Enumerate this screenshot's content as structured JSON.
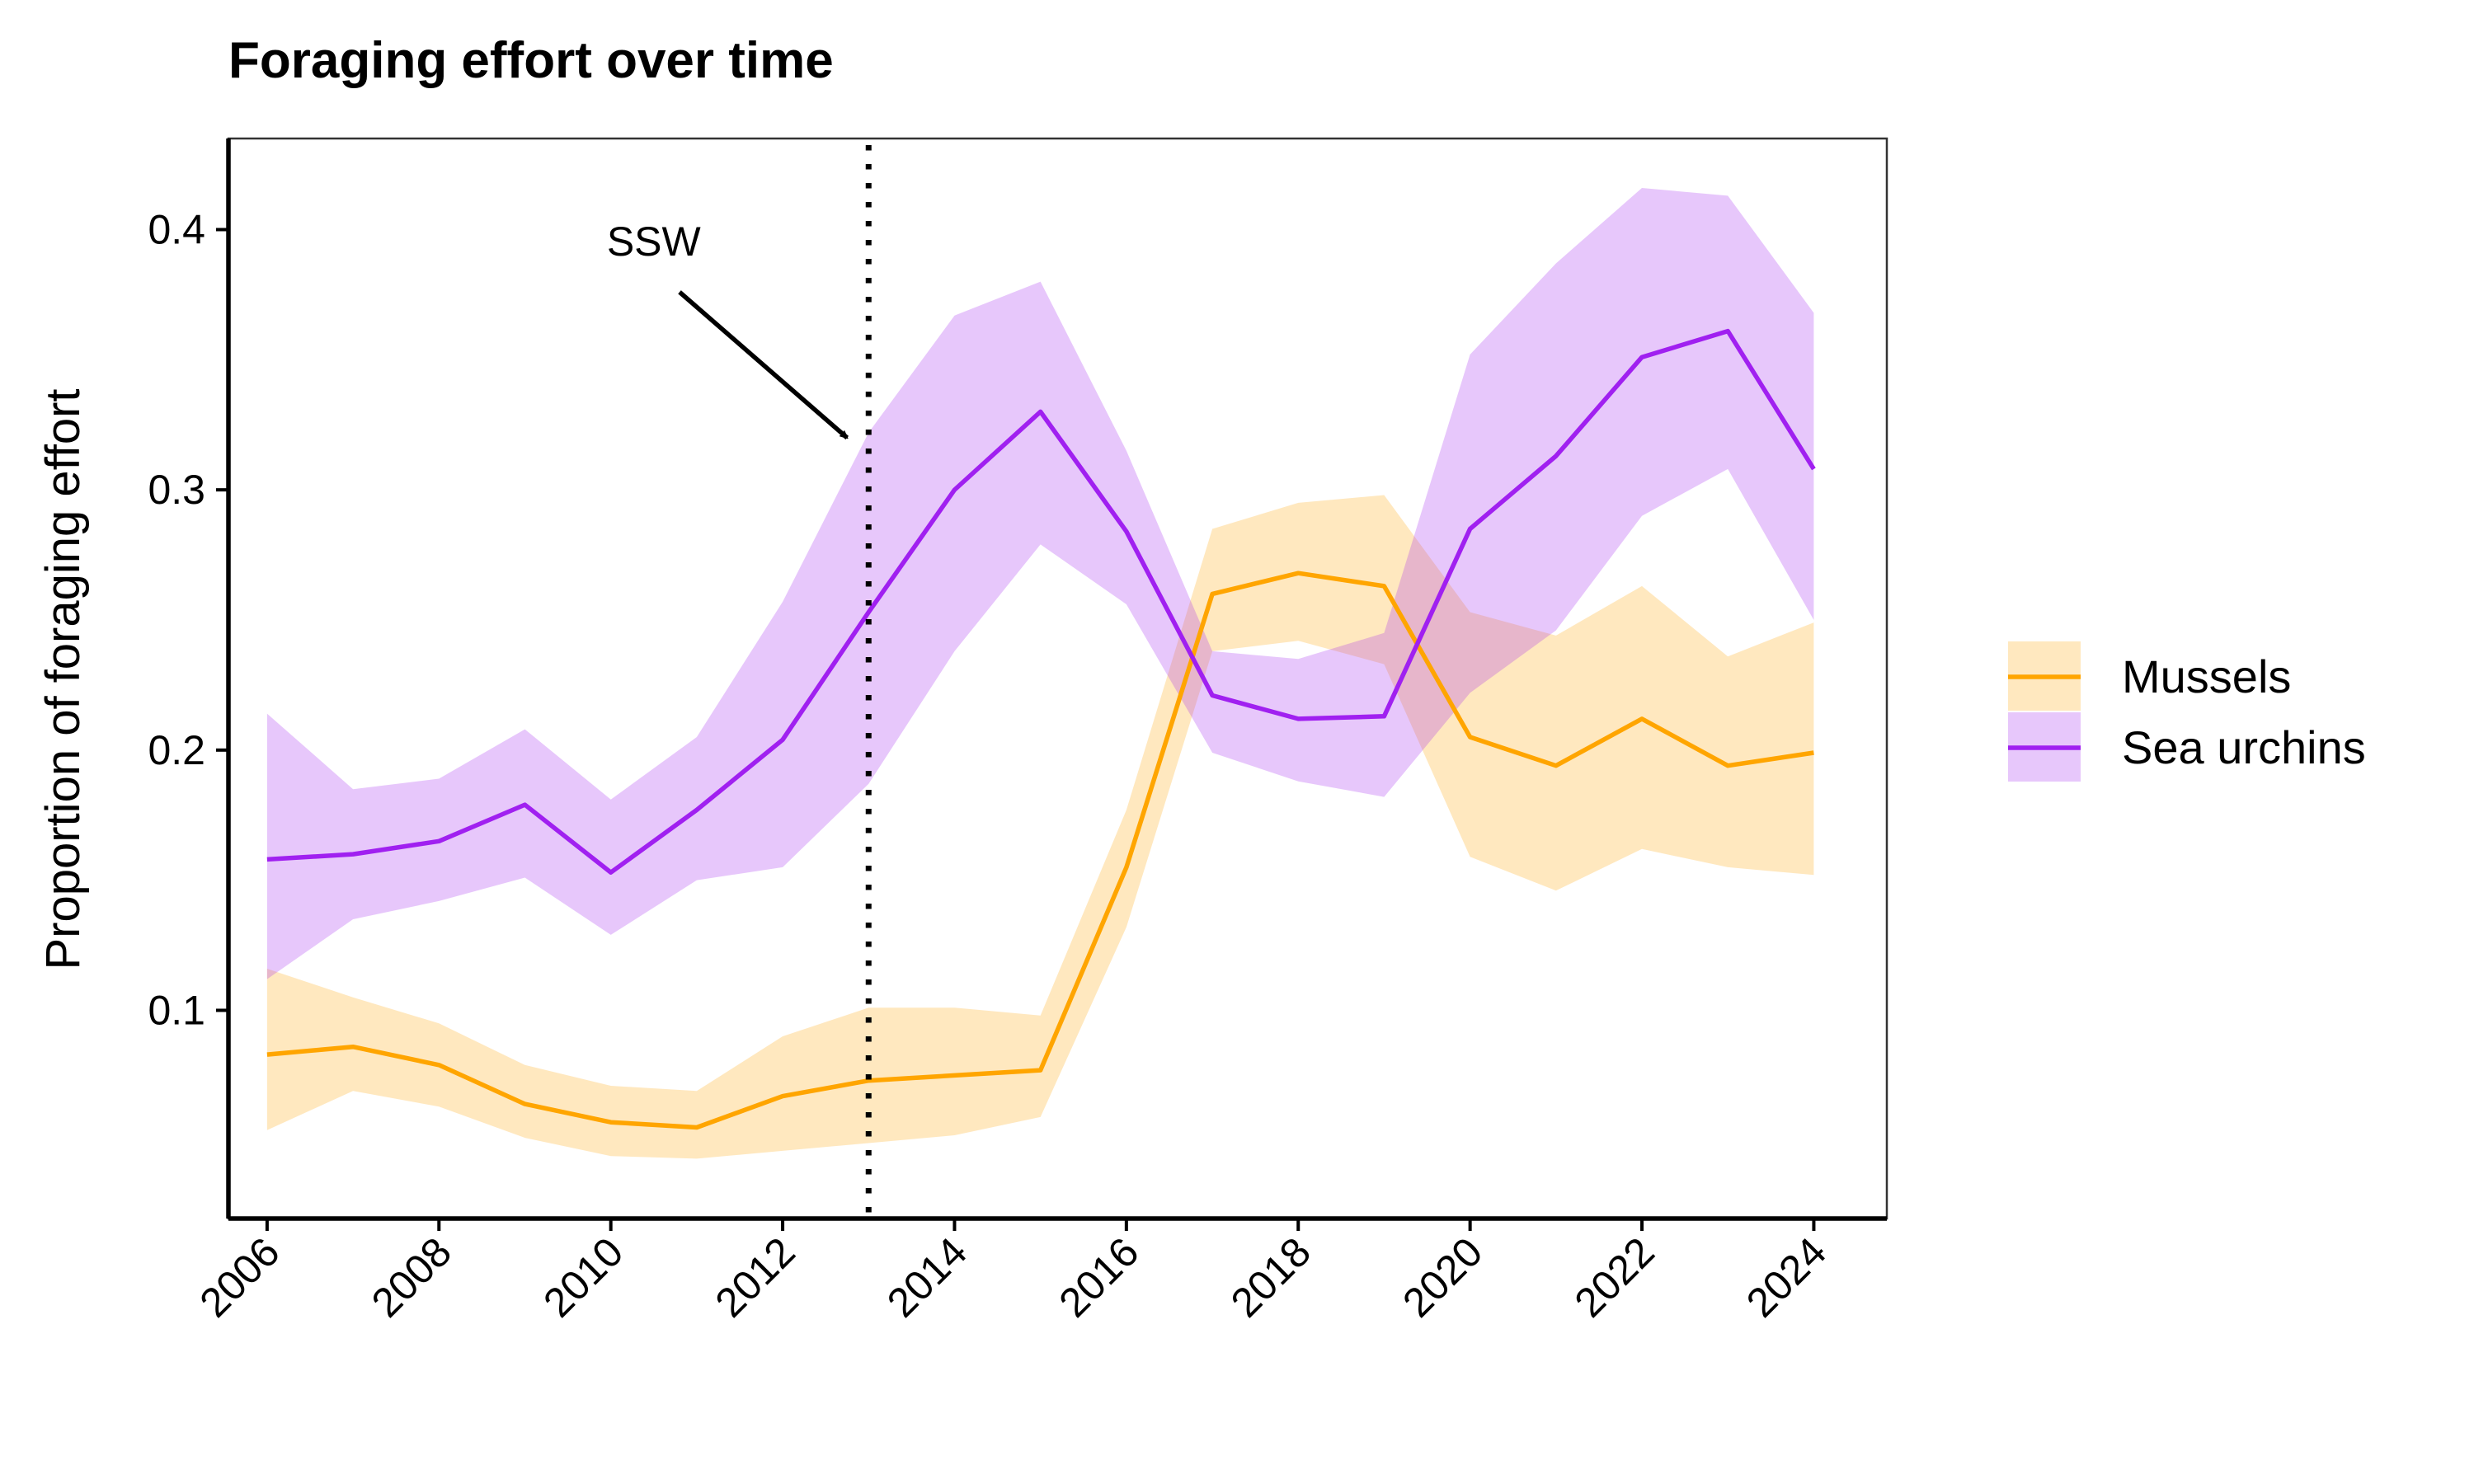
{
  "chart_data": {
    "type": "line",
    "title": "Foraging effort over time",
    "xlabel": "",
    "ylabel": "Proportion of foraging effort",
    "x": [
      2006,
      2007,
      2008,
      2009,
      2010,
      2011,
      2012,
      2013,
      2014,
      2015,
      2016,
      2017,
      2018,
      2019,
      2020,
      2021,
      2022,
      2023,
      2024
    ],
    "x_ticks": [
      "2006",
      "2008",
      "2010",
      "2012",
      "2014",
      "2016",
      "2018",
      "2020",
      "2022",
      "2024"
    ],
    "y_ticks": [
      "0.1",
      "0.2",
      "0.3",
      "0.4"
    ],
    "xlim": [
      2005.55,
      2024.85
    ],
    "ylim": [
      0.02,
      0.435
    ],
    "grid": false,
    "legend_position": "right",
    "series": [
      {
        "name": "Mussels",
        "color": "#FFA500",
        "ribbon_color": "#FFE7BC",
        "values": [
          0.083,
          0.086,
          0.079,
          0.064,
          0.057,
          0.055,
          0.067,
          0.073,
          0.075,
          0.077,
          0.155,
          0.26,
          0.268,
          0.263,
          0.205,
          0.194,
          0.212,
          0.194,
          0.199
        ],
        "lower": [
          0.054,
          0.069,
          0.063,
          0.051,
          0.044,
          0.043,
          0.046,
          0.049,
          0.052,
          0.059,
          0.132,
          0.238,
          0.242,
          0.233,
          0.159,
          0.146,
          0.162,
          0.155,
          0.152
        ],
        "upper": [
          0.116,
          0.105,
          0.095,
          0.079,
          0.071,
          0.069,
          0.09,
          0.101,
          0.101,
          0.098,
          0.177,
          0.285,
          0.295,
          0.298,
          0.253,
          0.244,
          0.263,
          0.236,
          0.249
        ]
      },
      {
        "name": "Sea urchins",
        "color": "#A020F0",
        "ribbon_color": "#E3C4FB",
        "values": [
          0.158,
          0.16,
          0.165,
          0.179,
          0.153,
          0.177,
          0.204,
          0.253,
          0.3,
          0.33,
          0.284,
          0.221,
          0.212,
          0.213,
          0.285,
          0.313,
          0.351,
          0.361,
          0.308
        ],
        "lower": [
          0.112,
          0.135,
          0.142,
          0.151,
          0.129,
          0.15,
          0.155,
          0.187,
          0.238,
          0.279,
          0.256,
          0.199,
          0.188,
          0.182,
          0.222,
          0.246,
          0.29,
          0.308,
          0.25
        ],
        "upper": [
          0.214,
          0.185,
          0.189,
          0.208,
          0.181,
          0.205,
          0.257,
          0.322,
          0.367,
          0.38,
          0.315,
          0.238,
          0.235,
          0.245,
          0.352,
          0.387,
          0.416,
          0.413,
          0.368
        ]
      }
    ],
    "annotations": [
      {
        "type": "vline",
        "x": 2013,
        "style": "dotted"
      },
      {
        "type": "text",
        "text": "SSW",
        "x": 2010.5,
        "y": 0.39
      },
      {
        "type": "arrow",
        "x_start": 2010.8,
        "y_start": 0.376,
        "x_end": 2012.75,
        "y_end": 0.32
      }
    ]
  }
}
